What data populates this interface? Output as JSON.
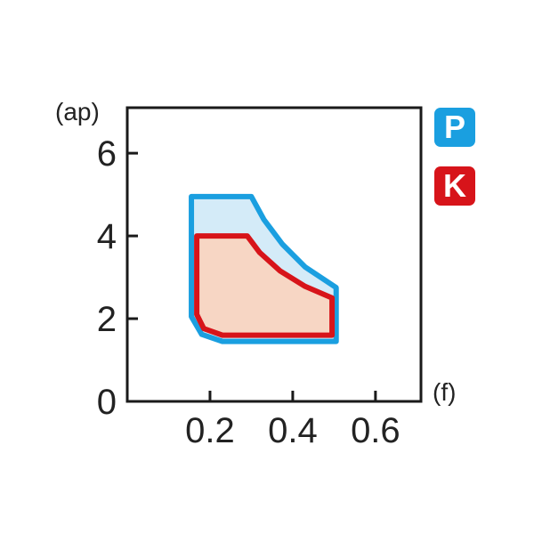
{
  "chart_data": {
    "type": "area",
    "ylabel": "(ap)",
    "xlabel": "(f)",
    "xlim": [
      0,
      0.71
    ],
    "ylim": [
      0,
      7.1
    ],
    "xticks": [
      "0.2",
      "0.4",
      "0.6"
    ],
    "xtick_values": [
      0.2,
      0.4,
      0.6
    ],
    "yticks": [
      "0",
      "2",
      "4",
      "6"
    ],
    "ytick_values": [
      0,
      2,
      4,
      6
    ],
    "grid": false,
    "legend": "right",
    "regions": [
      {
        "name": "P",
        "stroke": "#1a9fe0",
        "fill": "#d4ebf8",
        "points": [
          [
            0.155,
            4.95
          ],
          [
            0.3,
            4.95
          ],
          [
            0.33,
            4.4
          ],
          [
            0.375,
            3.8
          ],
          [
            0.43,
            3.25
          ],
          [
            0.505,
            2.75
          ],
          [
            0.505,
            1.45
          ],
          [
            0.23,
            1.45
          ],
          [
            0.18,
            1.62
          ],
          [
            0.155,
            2.05
          ]
        ]
      },
      {
        "name": "K",
        "stroke": "#d7141a",
        "fill": "#f7d6c4",
        "points": [
          [
            0.168,
            4.0
          ],
          [
            0.29,
            4.0
          ],
          [
            0.32,
            3.6
          ],
          [
            0.37,
            3.15
          ],
          [
            0.43,
            2.78
          ],
          [
            0.495,
            2.5
          ],
          [
            0.495,
            1.6
          ],
          [
            0.23,
            1.6
          ],
          [
            0.185,
            1.76
          ],
          [
            0.168,
            2.1
          ]
        ]
      }
    ]
  }
}
